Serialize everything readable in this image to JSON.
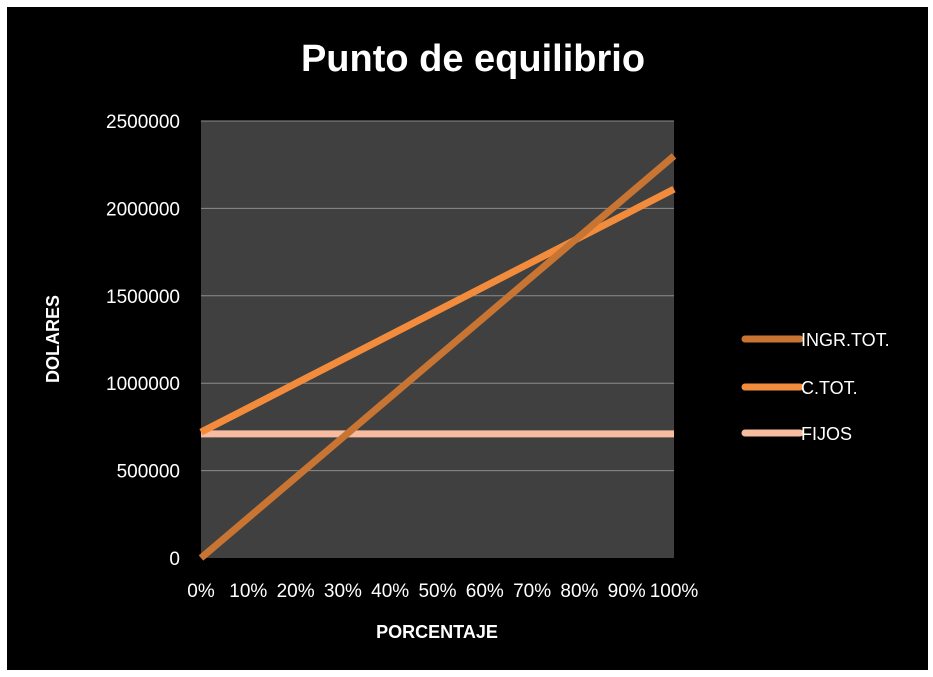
{
  "chart_data": {
    "type": "line",
    "title": "Punto de equilibrio",
    "xlabel": "PORCENTAJE",
    "ylabel": "DOLARES",
    "categories": [
      "0%",
      "10%",
      "20%",
      "30%",
      "40%",
      "50%",
      "60%",
      "70%",
      "80%",
      "90%",
      "100%"
    ],
    "y_ticks": [
      "0",
      "500000",
      "1000000",
      "1500000",
      "2000000",
      "2500000"
    ],
    "ylim": [
      0,
      2500000
    ],
    "grid": true,
    "legend_position": "right",
    "plot_background": "#404040",
    "background": "#000000",
    "series": [
      {
        "name": "INGR.TOT.",
        "color": "#C87533",
        "values": [
          0,
          230000,
          460000,
          690000,
          920000,
          1150000,
          1380000,
          1610000,
          1840000,
          2070000,
          2300000
        ]
      },
      {
        "name": "C.TOT.",
        "color": "#F28C3C",
        "values": [
          720000,
          859000,
          998000,
          1137000,
          1276000,
          1415000,
          1554000,
          1693000,
          1832000,
          1971000,
          2110000
        ]
      },
      {
        "name": "FIJOS",
        "color": "#F7BBA0",
        "values": [
          710000,
          710000,
          710000,
          710000,
          710000,
          710000,
          710000,
          710000,
          710000,
          710000,
          710000
        ]
      }
    ]
  }
}
